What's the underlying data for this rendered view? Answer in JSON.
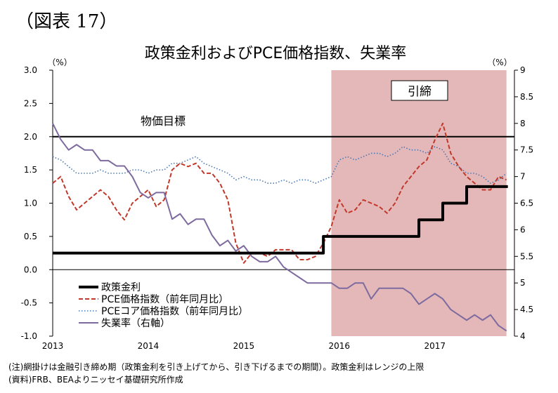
{
  "figure_label": "（図表 17）",
  "notes": {
    "note1": "(注)網掛けは金融引き締め期（政策金利を引き上げてから、引き下げるまでの期間）。政策金利はレンジの上限",
    "note2": "(資料)FRB、BEAよりニッセイ基礎研究所作成"
  },
  "chart_data": {
    "type": "line",
    "title": "政策金利およびPCE価格指数、失業率",
    "left_unit": "（%）",
    "right_unit": "（%）",
    "y_left": {
      "min": -1.0,
      "max": 3.0,
      "step": 0.5,
      "tick_labels": [
        "-1.0",
        "-0.5",
        "0.0",
        "0.5",
        "1.0",
        "1.5",
        "2.0",
        "2.5",
        "3.0"
      ]
    },
    "y_right": {
      "min": 4,
      "max": 9,
      "step": 0.5,
      "tick_labels": [
        "4",
        "4.5",
        "5",
        "5.5",
        "6",
        "6.5",
        "7",
        "7.5",
        "8",
        "8.5",
        "9"
      ]
    },
    "x": {
      "start": "2013-01",
      "end": "2017-10",
      "tick_labels": [
        "2013",
        "2014",
        "2015",
        "2016",
        "2017"
      ]
    },
    "grid": false,
    "legend_position": "bottom-left",
    "shaded_period": {
      "start": "2015-12",
      "end": "2017-10",
      "label": "引締"
    },
    "reference_line": {
      "value": 2.0,
      "label": "物価目標"
    },
    "series": [
      {
        "name": "政策金利",
        "axis": "left",
        "color": "#000000",
        "style": "solid-thick",
        "values": [
          0.25,
          0.25,
          0.25,
          0.25,
          0.25,
          0.25,
          0.25,
          0.25,
          0.25,
          0.25,
          0.25,
          0.25,
          0.25,
          0.25,
          0.25,
          0.25,
          0.25,
          0.25,
          0.25,
          0.25,
          0.25,
          0.25,
          0.25,
          0.25,
          0.25,
          0.25,
          0.25,
          0.25,
          0.25,
          0.25,
          0.25,
          0.25,
          0.25,
          0.25,
          0.25,
          0.5,
          0.5,
          0.5,
          0.5,
          0.5,
          0.5,
          0.5,
          0.5,
          0.5,
          0.5,
          0.5,
          0.5,
          0.75,
          0.75,
          0.75,
          1.0,
          1.0,
          1.0,
          1.25,
          1.25,
          1.25,
          1.25,
          1.25
        ]
      },
      {
        "name": "PCE価格指数（前年同月比）",
        "axis": "left",
        "color": "#c0392b",
        "style": "dashed",
        "values": [
          1.3,
          1.4,
          1.1,
          0.9,
          1.0,
          1.1,
          1.2,
          1.1,
          0.9,
          0.75,
          1.0,
          1.1,
          1.2,
          0.95,
          1.05,
          1.5,
          1.6,
          1.55,
          1.6,
          1.45,
          1.45,
          1.3,
          1.05,
          0.4,
          0.1,
          0.25,
          0.25,
          0.2,
          0.3,
          0.3,
          0.3,
          0.15,
          0.15,
          0.2,
          0.4,
          0.65,
          1.05,
          0.85,
          0.9,
          1.05,
          1.0,
          0.95,
          0.85,
          1.0,
          1.25,
          1.4,
          1.55,
          1.65,
          1.95,
          2.2,
          1.75,
          1.55,
          1.4,
          1.3,
          1.2,
          1.2,
          1.4,
          1.35
        ]
      },
      {
        "name": "PCEコア価格指数（前年同月比）",
        "axis": "left",
        "color": "#4a7ab5",
        "style": "dotted",
        "values": [
          1.7,
          1.65,
          1.55,
          1.45,
          1.45,
          1.45,
          1.5,
          1.45,
          1.45,
          1.45,
          1.5,
          1.5,
          1.45,
          1.5,
          1.5,
          1.6,
          1.6,
          1.65,
          1.7,
          1.6,
          1.55,
          1.5,
          1.45,
          1.35,
          1.4,
          1.35,
          1.35,
          1.3,
          1.3,
          1.35,
          1.3,
          1.35,
          1.35,
          1.3,
          1.35,
          1.4,
          1.65,
          1.7,
          1.65,
          1.7,
          1.75,
          1.75,
          1.7,
          1.75,
          1.85,
          1.8,
          1.8,
          1.75,
          1.85,
          1.8,
          1.6,
          1.55,
          1.45,
          1.45,
          1.4,
          1.3,
          1.35,
          1.45
        ]
      },
      {
        "name": "失業率（右軸）",
        "axis": "right",
        "color": "#7d6a9e",
        "style": "solid",
        "values": [
          8.0,
          7.7,
          7.5,
          7.6,
          7.5,
          7.5,
          7.3,
          7.3,
          7.2,
          7.2,
          7.0,
          6.7,
          6.6,
          6.7,
          6.7,
          6.2,
          6.3,
          6.1,
          6.2,
          6.2,
          5.9,
          5.7,
          5.8,
          5.6,
          5.7,
          5.5,
          5.4,
          5.4,
          5.5,
          5.3,
          5.2,
          5.1,
          5.0,
          5.0,
          5.0,
          5.0,
          4.9,
          4.9,
          5.0,
          5.0,
          4.7,
          4.9,
          4.9,
          4.9,
          4.9,
          4.8,
          4.6,
          4.7,
          4.8,
          4.7,
          4.5,
          4.4,
          4.3,
          4.4,
          4.3,
          4.4,
          4.2,
          4.1
        ]
      }
    ]
  }
}
